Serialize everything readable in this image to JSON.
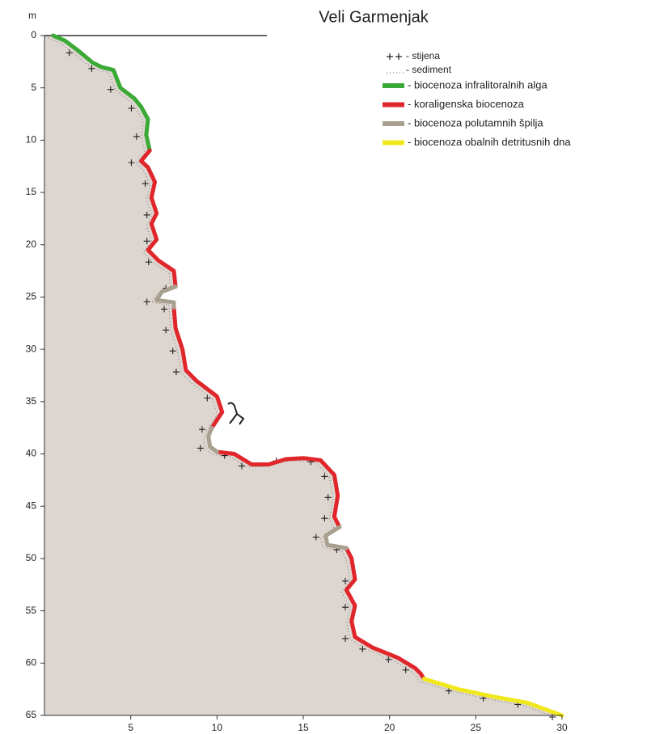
{
  "chart_data": {
    "type": "profile",
    "title": "Veli Garmenjak",
    "y_label": "m",
    "xlim": [
      0,
      30
    ],
    "xticks": [
      5,
      10,
      15,
      20,
      25,
      30
    ],
    "ylim": [
      0,
      65
    ],
    "y_inverted": true,
    "yticks": [
      0,
      5,
      10,
      15,
      20,
      25,
      30,
      35,
      40,
      45,
      50,
      55,
      60,
      65
    ],
    "legend_symbols": [
      {
        "name": "- stijena",
        "style": "crosses",
        "color": "#222222"
      },
      {
        "name": "- sediment",
        "style": "dotted",
        "color": "#666666"
      }
    ],
    "series": [
      {
        "name": "- biocenoza infralitoralnih alga",
        "color": "#3aa935",
        "x": [
          0.5,
          1.2,
          2,
          2.8,
          3.3,
          4,
          4.4,
          5.2,
          5.6,
          6,
          5.9,
          6.1
        ],
        "values": [
          0,
          0.5,
          1.5,
          2.6,
          3,
          3.3,
          5,
          6,
          6.8,
          8,
          9.5,
          11
        ]
      },
      {
        "name": "- koraligenska biocenoza",
        "color": "#e0262b",
        "x": [
          6.1,
          5.6,
          6,
          6.4,
          6.2,
          6.5,
          6.2,
          6.5,
          6,
          6.6,
          7.5,
          7.6,
          null,
          7.5,
          7.6,
          8,
          8.2,
          8.8,
          10,
          10.3,
          9.7,
          null,
          10,
          11,
          12,
          13,
          14,
          15,
          16,
          16.8,
          17,
          16.8,
          17.1,
          null,
          17.5,
          17.8,
          18,
          17.5,
          18,
          17.8,
          18,
          19,
          20.5,
          21.5,
          21.8,
          22
        ],
        "values": [
          11,
          12,
          12.6,
          14,
          15.5,
          17,
          18,
          19.5,
          20.5,
          21.5,
          22.5,
          24,
          null,
          26,
          28,
          30,
          32,
          33,
          34.5,
          36,
          37.5,
          null,
          39.8,
          40,
          41,
          41,
          40.5,
          40.4,
          40.6,
          42,
          44,
          46,
          47,
          null,
          49,
          50,
          52,
          53,
          54.5,
          56,
          57.5,
          58.5,
          59.5,
          60.5,
          61,
          61.5
        ]
      },
      {
        "name": "- biocenoza polutamnih špilja",
        "color": "#a89f8e",
        "x": [
          7.6,
          6.8,
          6.5,
          7.5,
          7.5,
          null,
          9.7,
          9.5,
          9.6,
          10,
          null,
          17.1,
          16.3,
          16.4,
          17.5
        ],
        "values": [
          24,
          24.5,
          25.3,
          25.5,
          26,
          null,
          37.5,
          38.3,
          39.3,
          39.8,
          null,
          47,
          47.8,
          48.7,
          49
        ]
      },
      {
        "name": "- biocenoza obalnih detritusnih dna",
        "color": "#f0e81c",
        "x": [
          22,
          24,
          26,
          28,
          30
        ],
        "values": [
          61.5,
          62.5,
          63.2,
          63.8,
          65
        ]
      }
    ]
  }
}
